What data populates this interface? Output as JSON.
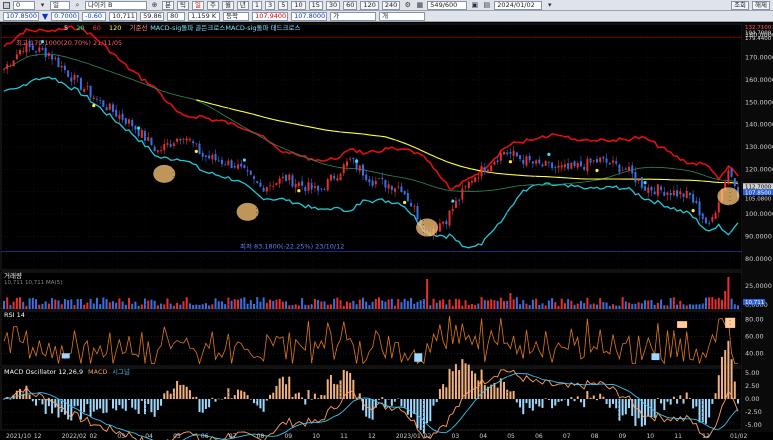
{
  "toolbar1": {
    "code": "0",
    "days_label": "일",
    "name": "나이키 B",
    "type_buttons": [
      "분",
      "틱",
      "일",
      "주",
      "월",
      "년"
    ],
    "intervals": [
      "1",
      "3",
      "5",
      "10",
      "15",
      "30",
      "60",
      "120",
      "240"
    ],
    "count": "549/600",
    "date": "2024/01/02",
    "right_buttons": [
      "조회",
      "해제"
    ]
  },
  "toolbar2": {
    "price": "107.8500",
    "change": "0.7000",
    "change_pct": "-0.60",
    "volume": "10,711",
    "vol_pct": "59.86",
    "label_a": "80",
    "turnover": "1,159 K",
    "label_b": "등락",
    "v1": "107.9400",
    "v2": "107.8000",
    "v3": "가",
    "v4": "개"
  },
  "price_panel": {
    "legend": [
      "5",
      "20",
      "60",
      "120",
      "기준선",
      "MACD-sig돌파 골든크로스",
      "MACD-sig돌파 데드크로스"
    ],
    "high_label": "최고 179.1000(20.70%) 21/11/05",
    "low_label": "최저 83.1800(-22.25%) 23/10/12",
    "axis_ticks": [
      "180.0000",
      "170.0000",
      "160.0000",
      "150.0000",
      "140.0000",
      "130.0000",
      "120.0000",
      "110.0000",
      "100.0000",
      "90.0000",
      "80.0000"
    ],
    "top_tags": [
      "132.7100",
      "104.7000",
      "179.4400"
    ],
    "current_tags": [
      "112.7000",
      "107.8500",
      "105.0800"
    ]
  },
  "volume_panel": {
    "title": "거래량",
    "subtitle": "10,711 10,711 MA(5)",
    "axis_ticks": [
      "25,0000",
      "0,0000"
    ],
    "current_tag": "10,711"
  },
  "rsi_panel": {
    "title": "RSI 14",
    "axis_ticks": [
      "80.00",
      "60.00",
      "40.00"
    ]
  },
  "macd_panel": {
    "title": "MACD Oscillator 12,26,9",
    "legend": [
      "MACD",
      "시그널"
    ],
    "axis_ticks": [
      "5.00",
      "2.50",
      "0.00",
      "-2.50",
      "-5.00"
    ]
  },
  "date_axis": [
    "2021/10",
    "12",
    "2022/02",
    "02",
    "03",
    "04",
    "05",
    "06",
    "07",
    "08",
    "09",
    "10",
    "11",
    "12",
    "2023/01",
    "02",
    "03",
    "04",
    "05",
    "06",
    "07",
    "08",
    "09",
    "10",
    "11",
    "12",
    "01/02"
  ],
  "colors": {
    "up": "#e63030",
    "down": "#3b6fe0",
    "ma5": "#ff4040",
    "ma20": "#2e8b57",
    "ma120": "#ffff40",
    "envelope_upper": "#e01010",
    "envelope_lower": "#22c8d8",
    "rsi": "#e07820",
    "macd": "#ffa060",
    "signal": "#40c0f0"
  }
}
